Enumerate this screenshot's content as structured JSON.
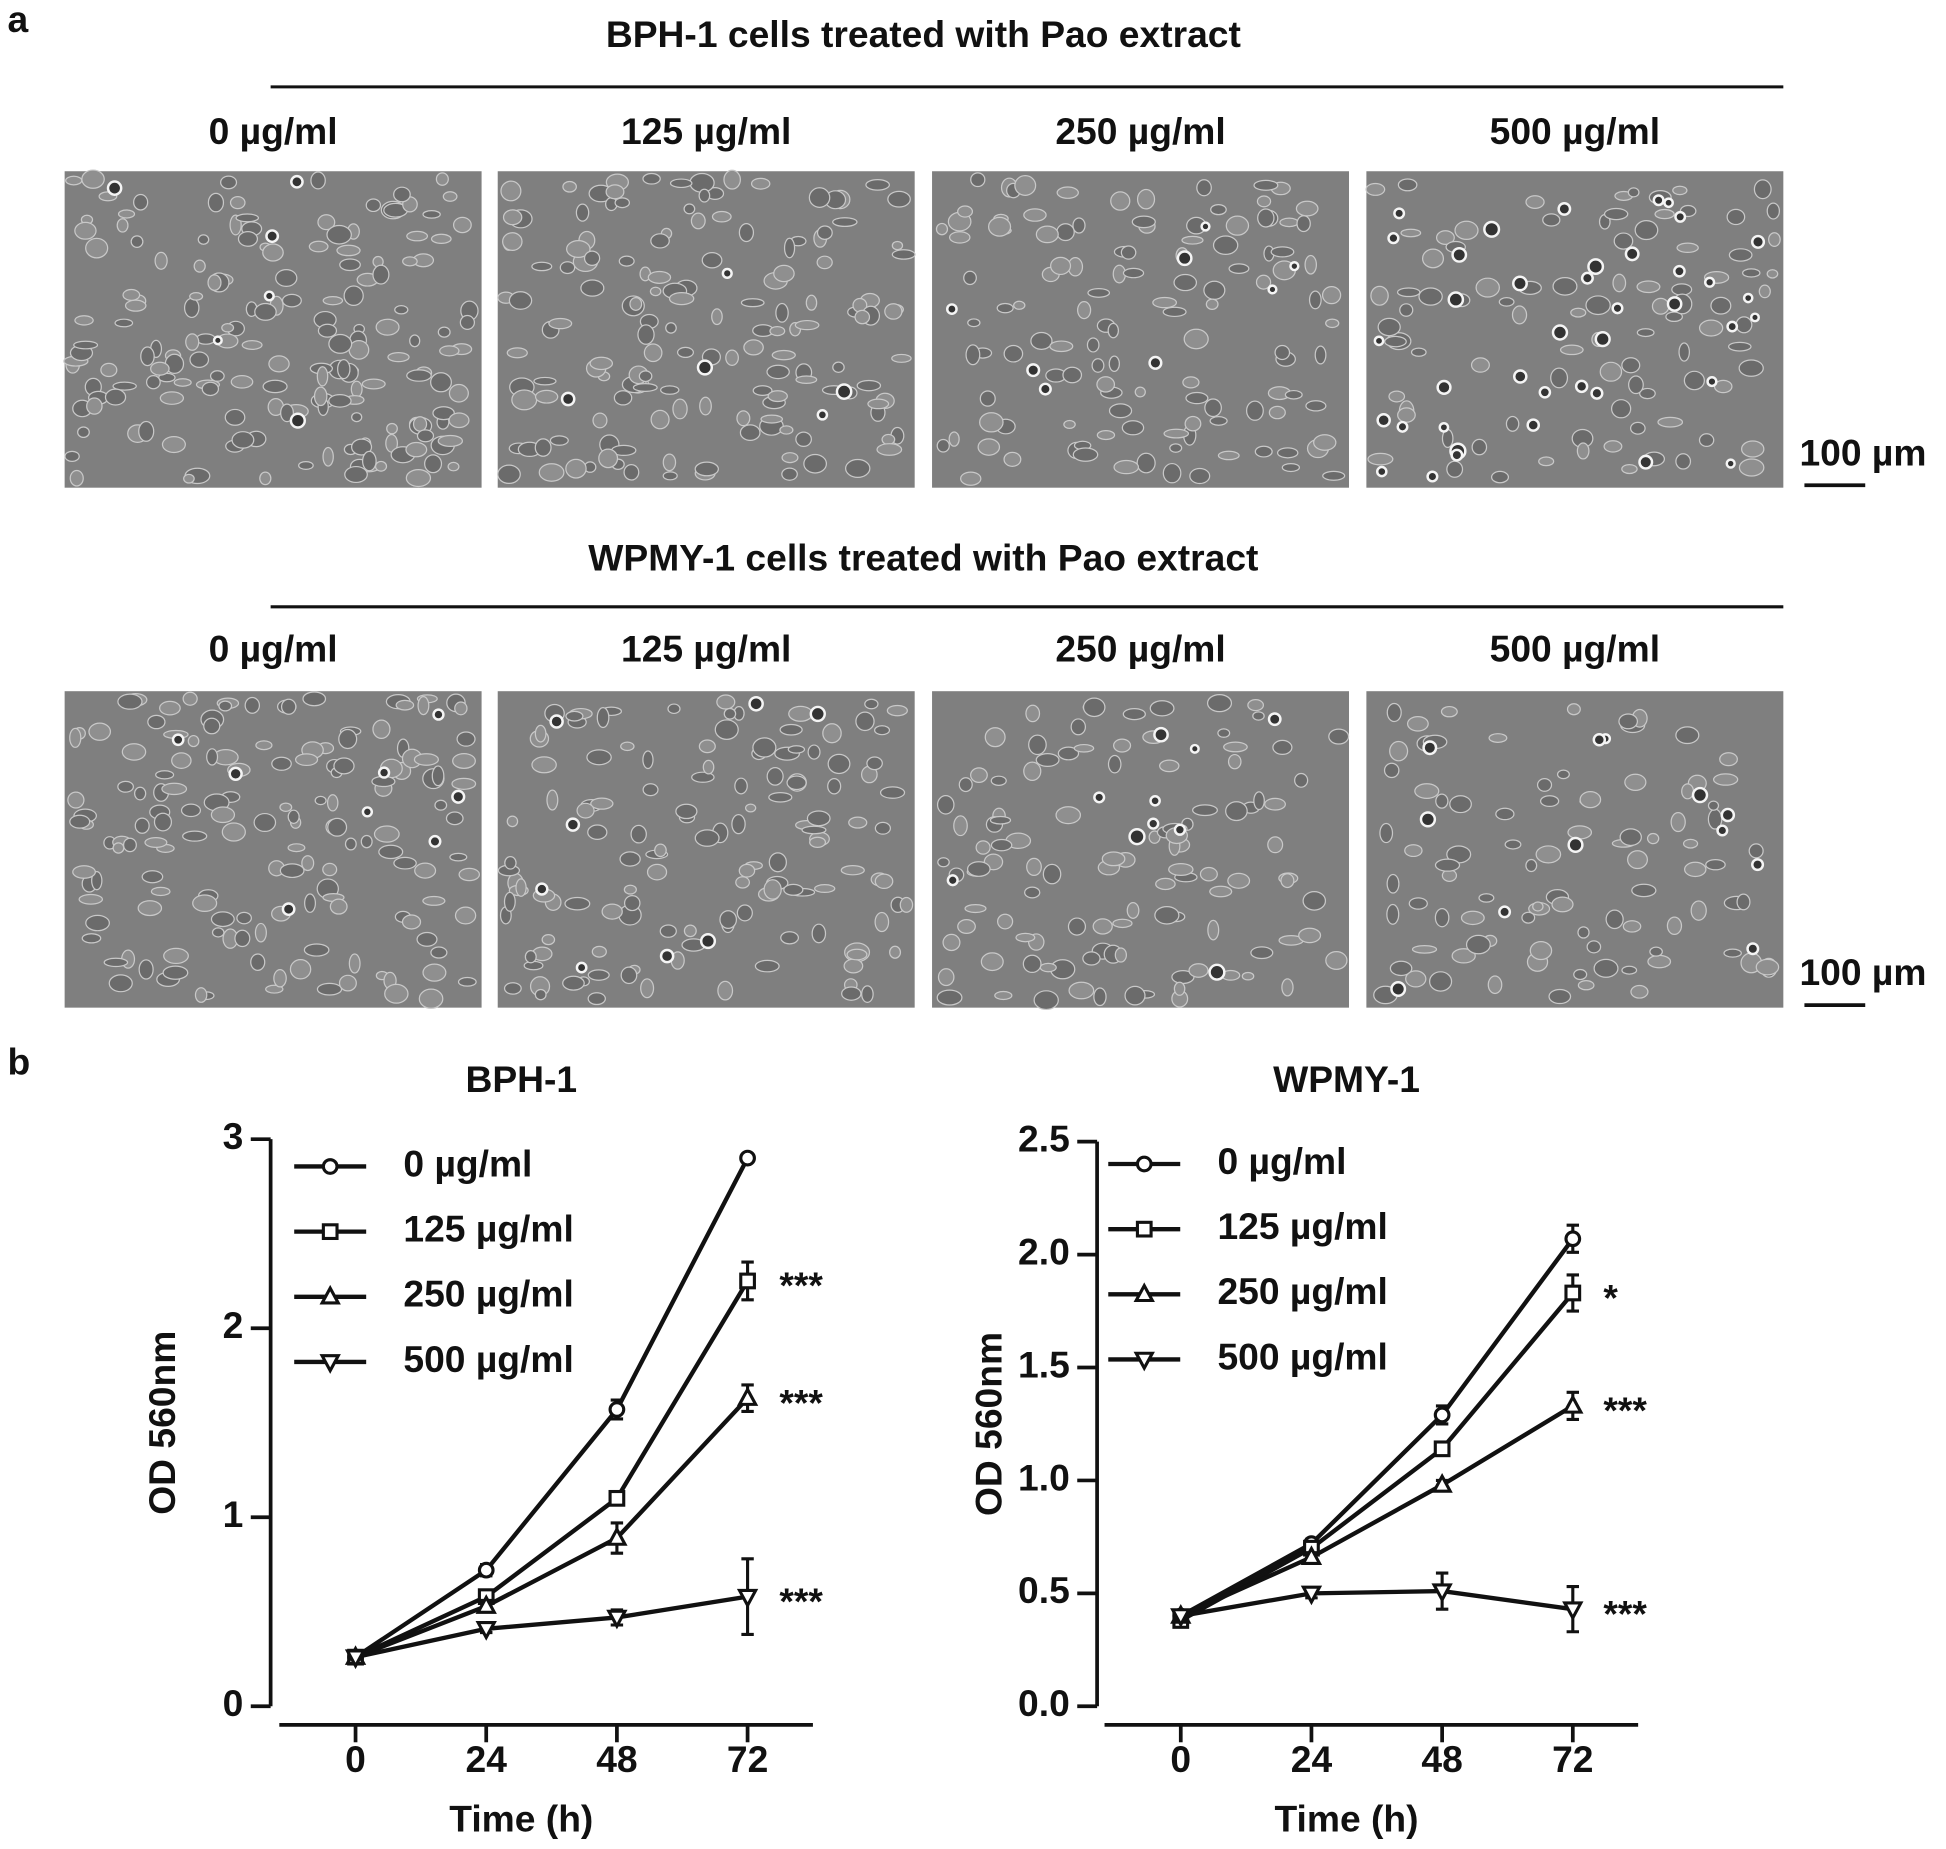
{
  "panel_a": {
    "label": "a",
    "groups": [
      {
        "title": "BPH-1 cells treated with Pao extract",
        "concentrations": [
          "0 µg/ml",
          "125 µg/ml",
          "250 µg/ml",
          "500 µg/ml"
        ],
        "scale_bar": "100 µm"
      },
      {
        "title": "WPMY-1 cells treated with Pao extract",
        "concentrations": [
          "0 µg/ml",
          "125 µg/ml",
          "250 µg/ml",
          "500 µg/ml"
        ],
        "scale_bar": "100 µm"
      }
    ]
  },
  "panel_b_label": "b",
  "chart_data": [
    {
      "type": "line",
      "title": "BPH-1",
      "x_label": "Time (h)",
      "y_label": "OD 560nm",
      "x": [
        0,
        24,
        48,
        72
      ],
      "xlim": [
        -14,
        84
      ],
      "xticks": [
        0,
        24,
        48,
        72
      ],
      "ylim": [
        0,
        3
      ],
      "yticks": [
        0,
        1,
        2,
        3
      ],
      "legend": "upper left",
      "series": [
        {
          "name": "0 µg/ml",
          "color": "#111111",
          "marker": "circle",
          "values": [
            0.26,
            0.72,
            1.57,
            2.9
          ],
          "errors": [
            0.01,
            0.03,
            0.05,
            0.01
          ]
        },
        {
          "name": "125 µg/ml",
          "color": "#111111",
          "marker": "square",
          "values": [
            0.26,
            0.58,
            1.1,
            2.25
          ],
          "errors": [
            0.01,
            0.03,
            0.03,
            0.1
          ],
          "annotation": "***"
        },
        {
          "name": "250 µg/ml",
          "color": "#111111",
          "marker": "triangle-up",
          "values": [
            0.26,
            0.53,
            0.89,
            1.63
          ],
          "errors": [
            0.01,
            0.03,
            0.08,
            0.07
          ],
          "annotation": "***"
        },
        {
          "name": "500 µg/ml",
          "color": "#111111",
          "marker": "triangle-down",
          "values": [
            0.26,
            0.41,
            0.47,
            0.58
          ],
          "errors": [
            0.01,
            0.02,
            0.04,
            0.2
          ],
          "annotation": "***"
        }
      ]
    },
    {
      "type": "line",
      "title": "WPMY-1",
      "x_label": "Time (h)",
      "y_label": "OD 560nm",
      "x": [
        0,
        24,
        48,
        72
      ],
      "xlim": [
        -14,
        84
      ],
      "xticks": [
        0,
        24,
        48,
        72
      ],
      "ylim": [
        0,
        2.5
      ],
      "yticks": [
        {
          "value": 0,
          "label": "0.0"
        },
        0.5,
        {
          "value": 1,
          "label": "1.0"
        },
        1.5,
        {
          "value": 2,
          "label": "2.0"
        },
        2.5
      ],
      "legend": "upper left",
      "series": [
        {
          "name": "0 µg/ml",
          "color": "#111111",
          "marker": "circle",
          "values": [
            0.4,
            0.72,
            1.29,
            2.07
          ],
          "errors": [
            0.02,
            0.02,
            0.04,
            0.06
          ]
        },
        {
          "name": "125 µg/ml",
          "color": "#111111",
          "marker": "square",
          "values": [
            0.38,
            0.7,
            1.14,
            1.83
          ],
          "errors": [
            0.02,
            0.02,
            0.02,
            0.08
          ],
          "annotation": "*"
        },
        {
          "name": "250 µg/ml",
          "color": "#111111",
          "marker": "triangle-up",
          "values": [
            0.4,
            0.66,
            0.98,
            1.33
          ],
          "errors": [
            0.02,
            0.02,
            0.02,
            0.06
          ],
          "annotation": "***"
        },
        {
          "name": "500 µg/ml",
          "color": "#111111",
          "marker": "triangle-down",
          "values": [
            0.4,
            0.5,
            0.51,
            0.43
          ],
          "errors": [
            0.02,
            0.02,
            0.08,
            0.1
          ],
          "annotation": "***"
        }
      ]
    }
  ]
}
